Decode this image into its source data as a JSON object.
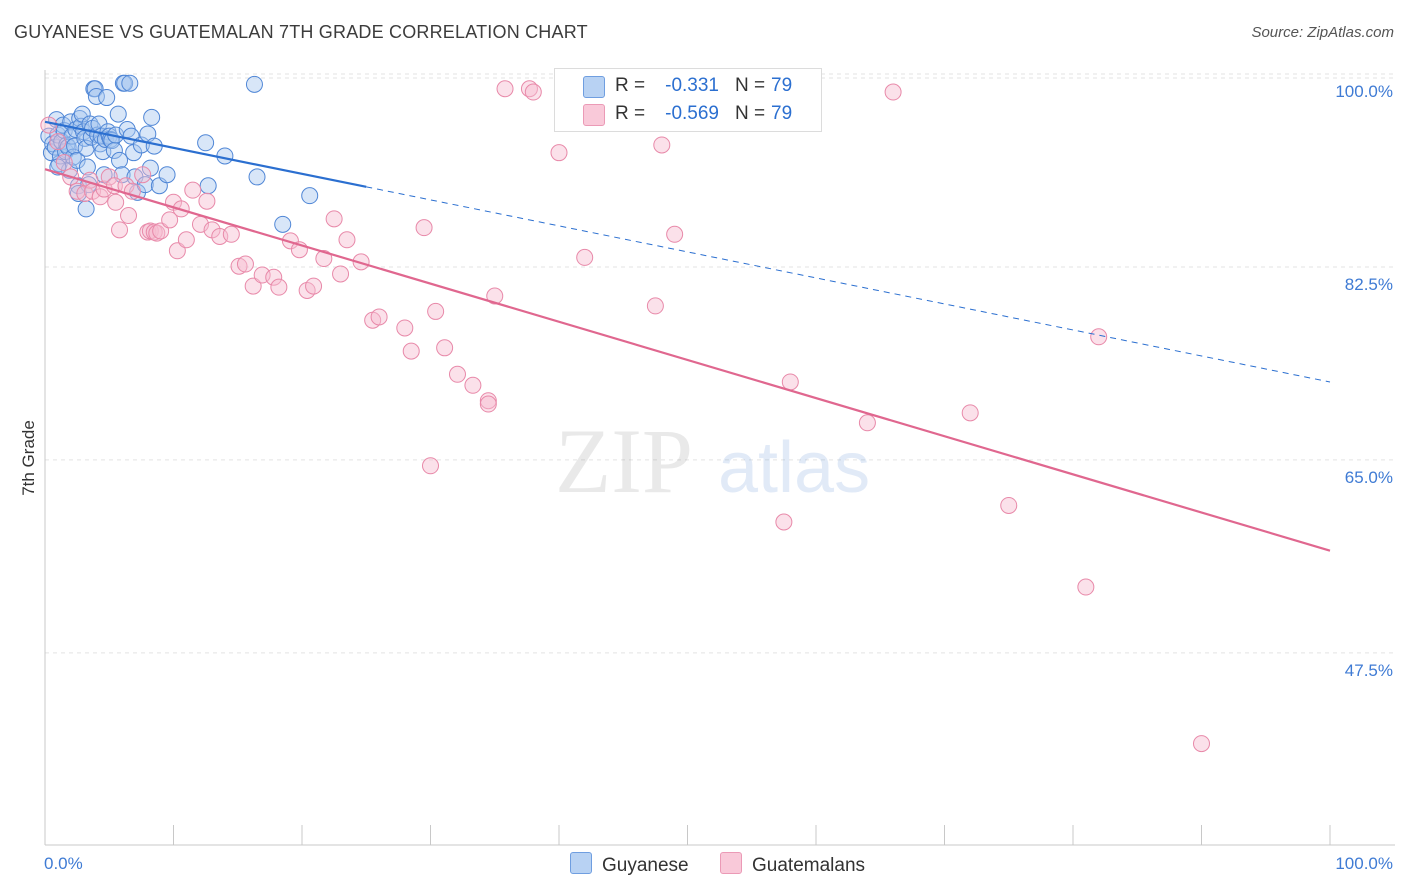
{
  "title": "GUYANESE VS GUATEMALAN 7TH GRADE CORRELATION CHART",
  "source": "Source: ZipAtlas.com",
  "watermark": {
    "zip": "ZIP",
    "atlas": "atlas"
  },
  "legend": {
    "rows": [
      {
        "r_label": "R =",
        "r_value": "-0.331",
        "n_label": "N =",
        "n_value": "79"
      },
      {
        "r_label": "R =",
        "r_value": "-0.569",
        "n_label": "N =",
        "n_value": "79"
      }
    ]
  },
  "bottom_legend": {
    "guyanese": "Guyanese",
    "guatemalans": "Guatemalans"
  },
  "colors": {
    "guyanese_fill": "#a9c8f0",
    "guyanese_stroke": "#4f86d6",
    "guyanese_line": "#2b6fd0",
    "guatemalan_fill": "#f7bcd0",
    "guatemalan_stroke": "#e889a9",
    "guatemalan_line": "#e0678f",
    "axis_text": "#3f7bd4",
    "grid": "#e3e3e3"
  },
  "chart_data": {
    "type": "scatter",
    "title": "GUYANESE VS GUATEMALAN 7TH GRADE CORRELATION CHART",
    "xlabel": "",
    "ylabel": "7th Grade",
    "xlim": [
      0,
      100
    ],
    "ylim": [
      31.7,
      102
    ],
    "x_tick_labels": [
      "0.0%",
      "100.0%"
    ],
    "y_ticks": [
      100.0,
      82.5,
      65.0,
      47.5
    ],
    "y_tick_labels": [
      "100.0%",
      "82.5%",
      "65.0%",
      "47.5%"
    ],
    "series": [
      {
        "name": "Guyanese",
        "r": -0.331,
        "n": 79,
        "trend": {
          "x0": 0,
          "y0": 97.3,
          "x1": 25,
          "y1": 91.4,
          "dash_to_x": 100,
          "dash_to_y": 73.7
        },
        "points": [
          [
            0.3,
            96.0
          ],
          [
            0.5,
            94.5
          ],
          [
            0.6,
            95.3
          ],
          [
            0.8,
            95.0
          ],
          [
            0.9,
            97.5
          ],
          [
            1.0,
            96.1
          ],
          [
            1.1,
            93.5
          ],
          [
            1.2,
            94.2
          ],
          [
            1.3,
            95.5
          ],
          [
            1.4,
            97.0
          ],
          [
            1.5,
            96.5
          ],
          [
            1.6,
            94.6
          ],
          [
            1.7,
            95.2
          ],
          [
            1.8,
            95.0
          ],
          [
            1.9,
            92.9
          ],
          [
            2.0,
            97.3
          ],
          [
            2.1,
            96.0
          ],
          [
            2.2,
            94.1
          ],
          [
            2.3,
            95.1
          ],
          [
            2.4,
            96.6
          ],
          [
            2.5,
            93.8
          ],
          [
            2.6,
            91.5
          ],
          [
            2.6,
            90.8
          ],
          [
            2.7,
            97.6
          ],
          [
            2.8,
            96.9
          ],
          [
            2.9,
            98.0
          ],
          [
            3.0,
            96.4
          ],
          [
            3.1,
            95.8
          ],
          [
            3.2,
            94.9
          ],
          [
            3.3,
            93.2
          ],
          [
            3.4,
            91.6
          ],
          [
            3.5,
            97.1
          ],
          [
            3.6,
            95.9
          ],
          [
            3.7,
            96.7
          ],
          [
            3.8,
            100.3
          ],
          [
            3.9,
            100.3
          ],
          [
            4.0,
            99.6
          ],
          [
            4.1,
            96.1
          ],
          [
            4.2,
            97.1
          ],
          [
            4.3,
            95.3
          ],
          [
            4.4,
            96.0
          ],
          [
            4.5,
            94.6
          ],
          [
            4.6,
            92.5
          ],
          [
            4.7,
            95.7
          ],
          [
            4.8,
            99.5
          ],
          [
            4.9,
            96.4
          ],
          [
            5.0,
            96.0
          ],
          [
            5.1,
            95.7
          ],
          [
            5.2,
            95.6
          ],
          [
            5.4,
            94.7
          ],
          [
            5.5,
            96.1
          ],
          [
            5.7,
            98.0
          ],
          [
            5.8,
            93.8
          ],
          [
            6.0,
            92.5
          ],
          [
            6.1,
            100.8
          ],
          [
            6.2,
            100.8
          ],
          [
            6.4,
            96.6
          ],
          [
            6.6,
            100.8
          ],
          [
            6.7,
            96.0
          ],
          [
            6.9,
            94.5
          ],
          [
            7.0,
            92.3
          ],
          [
            7.2,
            90.9
          ],
          [
            7.5,
            95.2
          ],
          [
            7.8,
            91.6
          ],
          [
            8.0,
            96.2
          ],
          [
            8.2,
            93.1
          ],
          [
            8.3,
            97.7
          ],
          [
            8.5,
            95.1
          ],
          [
            8.9,
            91.5
          ],
          [
            9.5,
            92.5
          ],
          [
            12.5,
            95.4
          ],
          [
            12.7,
            91.5
          ],
          [
            14.0,
            94.2
          ],
          [
            16.3,
            100.7
          ],
          [
            16.5,
            92.3
          ],
          [
            18.5,
            88.0
          ],
          [
            20.6,
            90.6
          ],
          [
            1.0,
            93.2
          ],
          [
            3.2,
            89.4
          ]
        ]
      },
      {
        "name": "Guatemalans",
        "r": -0.569,
        "n": 79,
        "trend": {
          "x0": 0,
          "y0": 93.0,
          "x1": 100,
          "y1": 58.4
        },
        "points": [
          [
            0.3,
            97.0
          ],
          [
            1.0,
            95.5
          ],
          [
            1.5,
            93.6
          ],
          [
            2.0,
            92.3
          ],
          [
            2.5,
            91.0
          ],
          [
            3.1,
            90.8
          ],
          [
            3.5,
            92.0
          ],
          [
            3.7,
            91.0
          ],
          [
            4.3,
            90.5
          ],
          [
            4.6,
            91.2
          ],
          [
            5.0,
            92.3
          ],
          [
            5.4,
            91.5
          ],
          [
            5.5,
            90.0
          ],
          [
            5.8,
            87.5
          ],
          [
            6.3,
            91.5
          ],
          [
            6.5,
            88.8
          ],
          [
            6.8,
            91.0
          ],
          [
            7.6,
            92.5
          ],
          [
            8.0,
            87.3
          ],
          [
            8.2,
            87.4
          ],
          [
            8.5,
            87.3
          ],
          [
            8.7,
            87.2
          ],
          [
            9.0,
            87.4
          ],
          [
            9.7,
            88.4
          ],
          [
            10.0,
            90.0
          ],
          [
            10.3,
            85.6
          ],
          [
            10.6,
            89.4
          ],
          [
            11.0,
            86.6
          ],
          [
            11.5,
            91.1
          ],
          [
            12.1,
            88.0
          ],
          [
            12.6,
            90.1
          ],
          [
            13.0,
            87.5
          ],
          [
            13.6,
            86.9
          ],
          [
            14.5,
            87.1
          ],
          [
            15.1,
            84.2
          ],
          [
            15.6,
            84.4
          ],
          [
            16.2,
            82.4
          ],
          [
            16.9,
            83.4
          ],
          [
            17.8,
            83.2
          ],
          [
            18.2,
            82.3
          ],
          [
            19.1,
            86.5
          ],
          [
            19.8,
            85.7
          ],
          [
            20.4,
            82.0
          ],
          [
            20.9,
            82.4
          ],
          [
            21.7,
            84.9
          ],
          [
            22.5,
            88.5
          ],
          [
            23.0,
            83.5
          ],
          [
            23.5,
            86.6
          ],
          [
            24.6,
            84.6
          ],
          [
            25.5,
            79.3
          ],
          [
            26.0,
            79.6
          ],
          [
            28.0,
            78.6
          ],
          [
            28.5,
            76.5
          ],
          [
            29.5,
            87.7
          ],
          [
            30.4,
            80.1
          ],
          [
            31.1,
            76.8
          ],
          [
            30.0,
            66.1
          ],
          [
            32.1,
            74.4
          ],
          [
            33.3,
            73.4
          ],
          [
            34.5,
            72.0
          ],
          [
            34.5,
            71.7
          ],
          [
            35.0,
            81.5
          ],
          [
            35.8,
            100.3
          ],
          [
            37.7,
            100.3
          ],
          [
            38.0,
            100.0
          ],
          [
            40.0,
            94.5
          ],
          [
            42.0,
            85.0
          ],
          [
            47.5,
            80.6
          ],
          [
            48.0,
            95.2
          ],
          [
            49.0,
            87.1
          ],
          [
            57.5,
            61.0
          ],
          [
            58.0,
            73.7
          ],
          [
            64.0,
            70.0
          ],
          [
            66.0,
            100.0
          ],
          [
            72.0,
            70.9
          ],
          [
            75.0,
            62.5
          ],
          [
            81.0,
            55.1
          ],
          [
            82.0,
            77.8
          ],
          [
            90.0,
            40.9
          ]
        ]
      }
    ]
  }
}
